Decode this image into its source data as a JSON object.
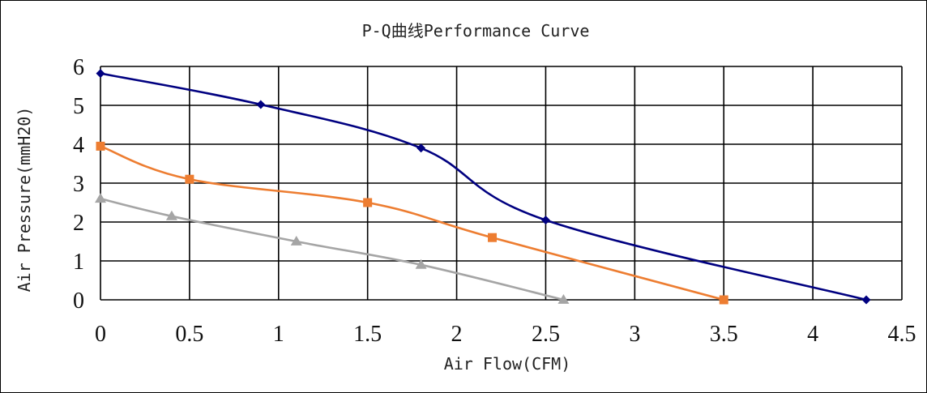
{
  "chart_data": {
    "type": "line",
    "title": "P-Q曲线Performance Curve",
    "xlabel": "Air Flow(CFM)",
    "ylabel": "Air Pressure(mmH20)",
    "xlim": [
      0,
      4.5
    ],
    "ylim": [
      0,
      6
    ],
    "x_ticks": [
      "0",
      "0.5",
      "1",
      "1.5",
      "2",
      "2.5",
      "3",
      "3.5",
      "4",
      "4.5"
    ],
    "y_ticks": [
      "0",
      "1",
      "2",
      "3",
      "4",
      "5",
      "6"
    ],
    "grid": true,
    "legend": "none",
    "series": [
      {
        "color": "#000080",
        "marker": "diamond",
        "points": [
          [
            0,
            5.82
          ],
          [
            0.9,
            5.02
          ],
          [
            1.8,
            3.9
          ],
          [
            2.5,
            2.05
          ],
          [
            4.3,
            0
          ]
        ]
      },
      {
        "color": "#ED7D31",
        "marker": "square",
        "points": [
          [
            0,
            3.95
          ],
          [
            0.5,
            3.1
          ],
          [
            1.5,
            2.5
          ],
          [
            2.2,
            1.6
          ],
          [
            3.5,
            0
          ]
        ]
      },
      {
        "color": "#A5A5A5",
        "marker": "triangle",
        "points": [
          [
            0,
            2.6
          ],
          [
            0.4,
            2.15
          ],
          [
            1.1,
            1.5
          ],
          [
            1.8,
            0.9
          ],
          [
            2.6,
            0
          ]
        ]
      }
    ]
  }
}
